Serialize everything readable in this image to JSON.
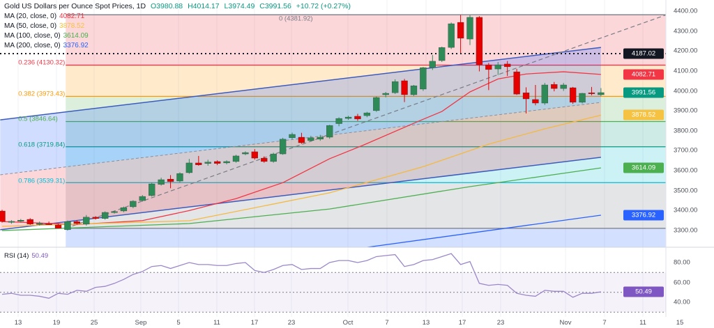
{
  "header": {
    "title": "Gold US Dollars per Ounce Spot Prices, 1D",
    "open": "O3980.88",
    "high": "H4014.17",
    "low": "L3974.49",
    "close": "C3991.56",
    "change": "+10.72 (+0.27%)"
  },
  "legend": [
    {
      "label": "MA (20, close, 0)",
      "value": "4082.71",
      "color": "#f23645"
    },
    {
      "label": "MA (50, close, 0)",
      "value": "3878.52",
      "color": "#f5c242"
    },
    {
      "label": "MA (100, close, 0)",
      "value": "3614.09",
      "color": "#4caf50"
    },
    {
      "label": "MA (200, close, 0)",
      "value": "3376.92",
      "color": "#2962ff"
    }
  ],
  "fib_labels": [
    {
      "text": "0 (4381.92)",
      "level": 4381.92,
      "color": "#787b86"
    },
    {
      "text": "0.236 (4130.32)",
      "level": 4130.32,
      "color": "#f23645"
    },
    {
      "text": "0.382 (3973.43)",
      "level": 3973.43,
      "color": "#ff9800"
    },
    {
      "text": "0.5 (3846.64)",
      "level": 3846.64,
      "color": "#4caf50"
    },
    {
      "text": "0.618 (3719.84)",
      "level": 3719.84,
      "color": "#089981"
    },
    {
      "text": "0.786 (3539.31)",
      "level": 3539.31,
      "color": "#00bcd4"
    }
  ],
  "price_axis": [
    "4400.00",
    "4300.00",
    "4200.00",
    "4100.00",
    "4000.00",
    "3900.00",
    "3800.00",
    "3700.00",
    "3600.00",
    "3500.00",
    "3400.00",
    "3300.00"
  ],
  "price_tags": [
    {
      "text": "4187.02",
      "value": 4187.02,
      "color": "#131722"
    },
    {
      "text": "4082.71",
      "value": 4082.71,
      "color": "#f23645"
    },
    {
      "text": "3991.56",
      "value": 3991.56,
      "color": "#089981"
    },
    {
      "text": "3878.52",
      "value": 3878.52,
      "color": "#f5c242"
    },
    {
      "text": "3614.09",
      "value": 3614.09,
      "color": "#4caf50"
    },
    {
      "text": "3376.92",
      "value": 3376.92,
      "color": "#2962ff"
    }
  ],
  "rsi": {
    "label": "RSI (14)",
    "value": "50.49",
    "axis": [
      "80.00",
      "60.00",
      "40.00"
    ],
    "color": "#7e57c2"
  },
  "date_axis": [
    "13",
    "19",
    "25",
    "Sep",
    "5",
    "11",
    "17",
    "23",
    "Oct",
    "7",
    "13",
    "17",
    "23",
    "Nov",
    "7",
    "11",
    "15"
  ],
  "chart_data": {
    "type": "candlestick",
    "title": "Gold US Dollars per Ounce Spot Prices, 1D",
    "ylim": [
      3216,
      4420
    ],
    "horizontal_line": 4187.02,
    "ohlc": [
      [
        3398,
        3404,
        3340,
        3345
      ],
      [
        3342,
        3352,
        3334,
        3346
      ],
      [
        3346,
        3358,
        3340,
        3352
      ],
      [
        3356,
        3362,
        3328,
        3332
      ],
      [
        3332,
        3345,
        3325,
        3336
      ],
      [
        3334,
        3345,
        3328,
        3330
      ],
      [
        3328,
        3334,
        3311,
        3311
      ],
      [
        3304,
        3350,
        3300,
        3345
      ],
      [
        3345,
        3352,
        3330,
        3335
      ],
      [
        3332,
        3378,
        3325,
        3367
      ],
      [
        3367,
        3372,
        3355,
        3360
      ],
      [
        3360,
        3396,
        3355,
        3391
      ],
      [
        3391,
        3400,
        3385,
        3395
      ],
      [
        3398,
        3420,
        3392,
        3415
      ],
      [
        3419,
        3452,
        3412,
        3447
      ],
      [
        3450,
        3478,
        3445,
        3471
      ],
      [
        3475,
        3540,
        3470,
        3534
      ],
      [
        3531,
        3565,
        3525,
        3555
      ],
      [
        3558,
        3578,
        3512,
        3545
      ],
      [
        3548,
        3592,
        3540,
        3586
      ],
      [
        3590,
        3659,
        3585,
        3639
      ],
      [
        3639,
        3674,
        3625,
        3629
      ],
      [
        3636,
        3655,
        3625,
        3643
      ],
      [
        3646,
        3652,
        3628,
        3636
      ],
      [
        3639,
        3652,
        3632,
        3646
      ],
      [
        3646,
        3680,
        3640,
        3674
      ],
      [
        3684,
        3697,
        3678,
        3691
      ],
      [
        3695,
        3708,
        3656,
        3663
      ],
      [
        3663,
        3672,
        3640,
        3646
      ],
      [
        3646,
        3690,
        3640,
        3684
      ],
      [
        3684,
        3765,
        3680,
        3758
      ],
      [
        3765,
        3791,
        3758,
        3782
      ],
      [
        3768,
        3790,
        3735,
        3740
      ],
      [
        3751,
        3775,
        3745,
        3765
      ],
      [
        3758,
        3780,
        3750,
        3768
      ],
      [
        3768,
        3830,
        3760,
        3827
      ],
      [
        3836,
        3868,
        3823,
        3862
      ],
      [
        3862,
        3875,
        3855,
        3869
      ],
      [
        3873,
        3885,
        3850,
        3859
      ],
      [
        3876,
        3895,
        3868,
        3890
      ],
      [
        3901,
        3972,
        3895,
        3967
      ],
      [
        3981,
        3995,
        3968,
        3988
      ],
      [
        3991,
        4058,
        3985,
        4047
      ],
      [
        4051,
        4060,
        3944,
        3981
      ],
      [
        3981,
        4030,
        3975,
        4026
      ],
      [
        4009,
        4120,
        4000,
        4117
      ],
      [
        4117,
        4180,
        4105,
        4149
      ],
      [
        4152,
        4222,
        4145,
        4218
      ],
      [
        4218,
        4343,
        4210,
        4337
      ],
      [
        4344,
        4381,
        4190,
        4264
      ],
      [
        4260,
        4381,
        4230,
        4369
      ],
      [
        4369,
        4375,
        4098,
        4131
      ],
      [
        4131,
        4140,
        4004,
        4107
      ],
      [
        4110,
        4145,
        4080,
        4131
      ],
      [
        4135,
        4150,
        4075,
        4121
      ],
      [
        4096,
        4110,
        3980,
        3984
      ],
      [
        3991,
        4018,
        3887,
        3960
      ],
      [
        3957,
        4030,
        3928,
        3939
      ],
      [
        3939,
        4040,
        3930,
        4030
      ],
      [
        4033,
        4045,
        3998,
        4012
      ],
      [
        4012,
        4040,
        4000,
        4030
      ],
      [
        4016,
        4020,
        3935,
        3943
      ],
      [
        3943,
        3990,
        3937,
        3988
      ],
      [
        3991,
        4020,
        3978,
        3988
      ],
      [
        3980.88,
        4014.17,
        3974.49,
        3991.56
      ]
    ],
    "moving_averages": [
      {
        "name": "MA 20",
        "color": "#f23645",
        "points": [
          [
            0,
            3345
          ],
          [
            8,
            3330
          ],
          [
            15,
            3350
          ],
          [
            20,
            3400
          ],
          [
            25,
            3460
          ],
          [
            30,
            3540
          ],
          [
            35,
            3660
          ],
          [
            38.5,
            3726
          ],
          [
            44.7,
            3852
          ],
          [
            47,
            3897
          ],
          [
            50,
            3995
          ],
          [
            53,
            4060
          ],
          [
            56,
            4085
          ],
          [
            60,
            4096
          ],
          [
            64,
            4082.71
          ]
        ]
      },
      {
        "name": "MA 50",
        "color": "#f5b942",
        "points": [
          [
            0,
            3321
          ],
          [
            20,
            3349
          ],
          [
            35,
            3489
          ],
          [
            45,
            3620
          ],
          [
            52,
            3733
          ],
          [
            58,
            3810
          ],
          [
            64,
            3878.52
          ]
        ]
      },
      {
        "name": "MA 100",
        "color": "#4caf50",
        "points": [
          [
            0,
            3300
          ],
          [
            20,
            3335
          ],
          [
            35,
            3408
          ],
          [
            50,
            3520
          ],
          [
            64,
            3614.09
          ]
        ]
      },
      {
        "name": "MA 200",
        "color": "#2962ff",
        "points": [
          [
            39,
            3216
          ],
          [
            64,
            3376.92
          ]
        ]
      }
    ],
    "regression_channel": {
      "start": [
        -0.2,
        3855,
        3304
      ],
      "end": [
        64,
        4218,
        3667
      ]
    },
    "fib_retracement": {
      "from": [
        6.8,
        3311
      ],
      "to": [
        71,
        4381.92
      ],
      "levels": [
        0,
        0.236,
        0.382,
        0.5,
        0.618,
        0.786,
        1
      ]
    },
    "rsi_values": [
      48,
      49,
      47,
      47,
      46,
      44,
      49,
      48,
      52,
      51,
      55,
      56,
      59,
      63,
      68,
      71,
      76,
      77,
      74,
      77,
      80,
      78,
      78,
      77,
      77,
      79,
      80,
      72,
      70,
      73,
      77,
      78,
      73,
      74,
      74,
      80,
      82,
      82,
      80,
      82,
      86,
      87,
      88,
      76,
      78,
      82,
      83,
      86,
      89,
      78,
      81,
      59,
      57,
      58,
      57,
      49,
      47,
      46,
      52,
      51,
      51,
      45,
      49,
      49,
      50.49
    ],
    "rsi_levels": [
      70,
      50,
      30
    ]
  }
}
